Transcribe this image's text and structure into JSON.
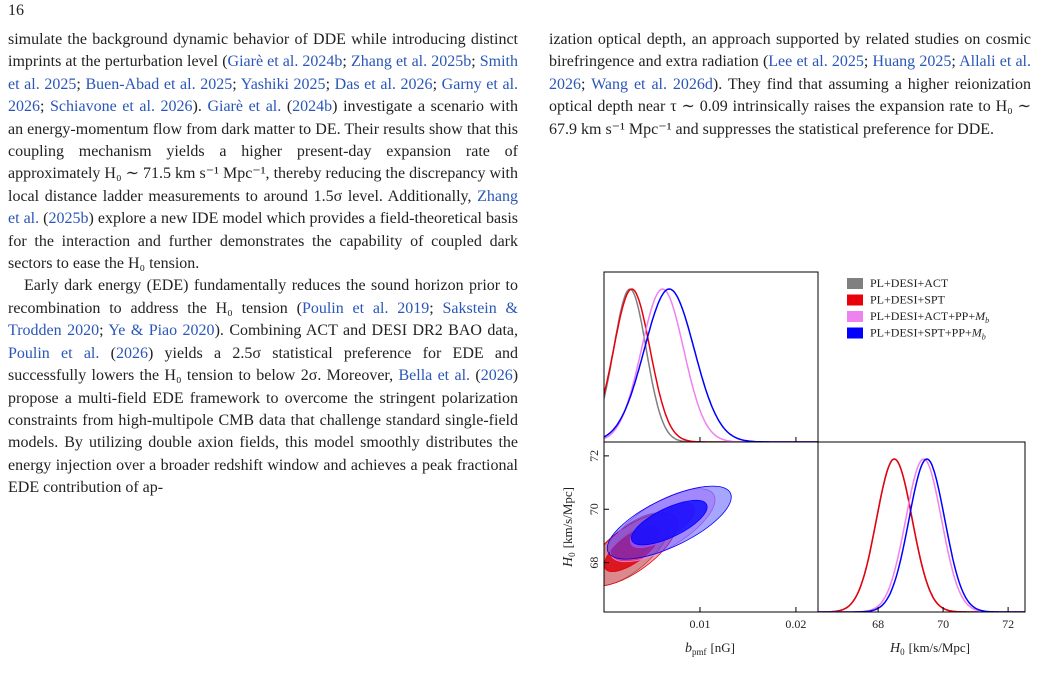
{
  "header": {
    "page_number": "16"
  },
  "left_column": {
    "paragraphs": [
      {
        "indent": false,
        "runs": [
          "simulate the background dynamic behavior of DDE while introducing distinct imprints at the perturbation level (",
          {
            "link": "Giarè et al. 2024b"
          },
          "; ",
          {
            "link": "Zhang et al. 2025b"
          },
          "; ",
          {
            "link": "Smith et al. 2025"
          },
          "; ",
          {
            "link": "Buen-Abad et al. 2025"
          },
          "; ",
          {
            "link": "Yashiki 2025"
          },
          "; ",
          {
            "link": "Das et al. 2026"
          },
          "; ",
          {
            "link": "Garny et al. 2026"
          },
          "; ",
          {
            "link": "Schiavone et al. 2026"
          },
          "). ",
          {
            "link": "Giarè et al."
          },
          " (",
          {
            "link": "2024b"
          },
          ") investigate a scenario with an energy-momentum flow from dark matter to DE. Their results show that this coupling mechanism yields a higher present-day expansion rate of approximately H₀ ∼ 71.5 km s⁻¹ Mpc⁻¹, thereby reducing the discrepancy with local distance ladder measurements to around 1.5σ level. Additionally, ",
          {
            "link": "Zhang et al."
          },
          " (",
          {
            "link": "2025b"
          },
          ") explore a new IDE model which provides a field-theoretical basis for the interaction and further demonstrates the capability of coupled dark sectors to ease the H₀ tension."
        ]
      },
      {
        "indent": true,
        "runs": [
          "Early dark energy (EDE) fundamentally reduces the sound horizon prior to recombination to address the H₀ tension (",
          {
            "link": "Poulin et al. 2019"
          },
          "; ",
          {
            "link": "Sakstein & Trodden 2020"
          },
          "; ",
          {
            "link": "Ye & Piao 2020"
          },
          "). Combining ACT and DESI DR2 BAO data, ",
          {
            "link": "Poulin et al."
          },
          " (",
          {
            "link": "2026"
          },
          ") yields a 2.5σ statistical preference for EDE and successfully lowers the H₀ tension to below 2σ. Moreover, ",
          {
            "link": "Bella et al."
          },
          " (",
          {
            "link": "2026"
          },
          ") propose a multi-field EDE framework to overcome the stringent polarization constraints from high-multipole CMB data that challenge standard single-field models. By utilizing double axion fields, this model smoothly distributes the energy injection over a broader redshift window and achieves a peak fractional EDE contribution of ap-"
        ]
      }
    ]
  },
  "right_column": {
    "paragraphs": [
      {
        "indent": false,
        "runs": [
          "ization optical depth, an approach supported by related studies on cosmic birefringence and extra radiation (",
          {
            "link": "Lee et al. 2025"
          },
          "; ",
          {
            "link": "Huang 2025"
          },
          "; ",
          {
            "link": "Allali et al. 2026"
          },
          "; ",
          {
            "link": "Wang et al. 2026d"
          },
          "). They find that assuming a higher reionization optical depth near τ ∼ 0.09 intrinsically raises the expansion rate to H₀ ∼ 67.9 km s⁻¹ Mpc⁻¹ and suppresses the statistical preference for DDE."
        ]
      }
    ]
  },
  "chart_data": {
    "type": "triangle",
    "params": [
      {
        "symbol": "b",
        "sub": "pmf",
        "unit": "[nG]",
        "lim": [
          0,
          0.0223
        ],
        "ticks": [
          0.01,
          0.02
        ]
      },
      {
        "symbol": "H",
        "sub": "0",
        "unit": "[km/s/Mpc]",
        "lim": [
          66.15,
          72.52
        ],
        "ticks": [
          68,
          70,
          72
        ]
      }
    ],
    "series": [
      {
        "name": "PL+DESI+ACT",
        "color": "#808080",
        "mean": [
          0.0027,
          68.5
        ],
        "sd": [
          0.0017,
          0.55
        ],
        "corr": 0.7
      },
      {
        "name": "PL+DESI+SPT",
        "color": "#e8000b",
        "mean": [
          0.0029,
          68.5
        ],
        "sd": [
          0.0019,
          0.55
        ],
        "corr": 0.7
      },
      {
        "name": "PL+DESI+ACT+PP+",
        "math": "M",
        "sub": "b",
        "color": "#ee82ee",
        "mean": [
          0.0061,
          69.4
        ],
        "sd": [
          0.0022,
          0.55
        ],
        "corr": 0.7
      },
      {
        "name": "PL+DESI+SPT+PP+",
        "math": "M",
        "sub": "b",
        "color": "#0000ff",
        "mean": [
          0.0068,
          69.5
        ],
        "sd": [
          0.0026,
          0.55
        ],
        "corr": 0.7
      }
    ]
  }
}
